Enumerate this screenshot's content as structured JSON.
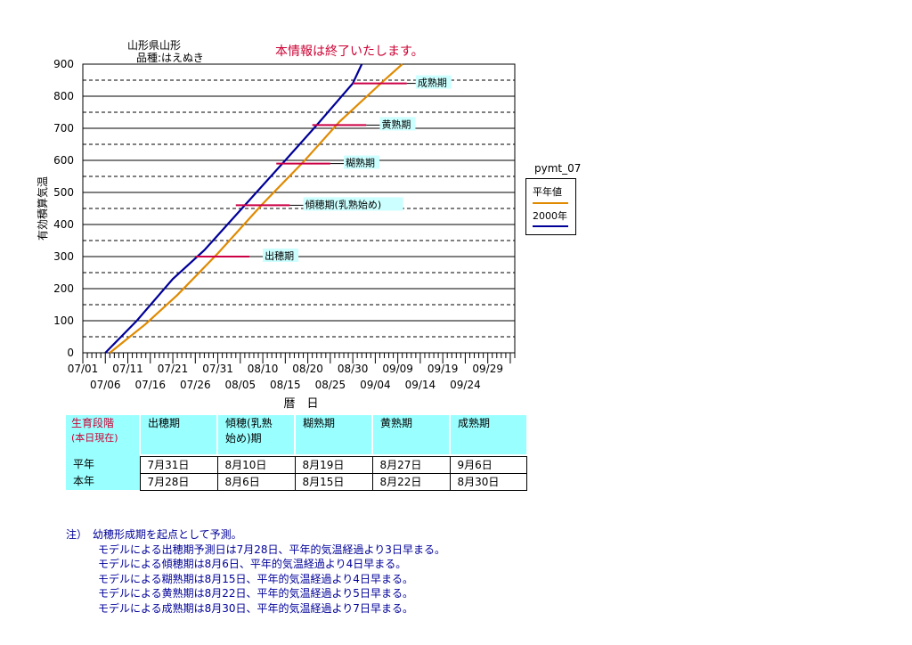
{
  "header": {
    "location": "山形県山形",
    "variety": "品種:はえぬき",
    "notice": "本情報は終了いたします。"
  },
  "chart_data": {
    "type": "line",
    "ylabel": "有効積算気温",
    "xlabel": "暦　日",
    "ylim": [
      0,
      900
    ],
    "yticks": [
      0,
      100,
      200,
      300,
      400,
      500,
      600,
      700,
      800,
      900
    ],
    "x_start": "07/01",
    "x_end": "10/04",
    "xticks_row1": [
      "07/01",
      "07/11",
      "07/21",
      "07/31",
      "08/10",
      "08/20",
      "08/30",
      "09/09",
      "09/19",
      "09/29"
    ],
    "xticks_row2": [
      "07/06",
      "07/16",
      "07/26",
      "08/05",
      "08/15",
      "08/25",
      "09/04",
      "09/14",
      "09/24"
    ],
    "grid": true,
    "legend_title": "pymt_07",
    "legend_position": "right",
    "series": [
      {
        "name": "平年値",
        "color": "#e08a00",
        "points": [
          [
            "07/07",
            0
          ],
          [
            "07/15",
            90
          ],
          [
            "07/22",
            180
          ],
          [
            "07/31",
            310
          ],
          [
            "08/10",
            465
          ],
          [
            "08/19",
            595
          ],
          [
            "08/27",
            720
          ],
          [
            "09/06",
            850
          ],
          [
            "09/10",
            900
          ]
        ]
      },
      {
        "name": "2000年",
        "color": "#000099",
        "points": [
          [
            "07/06",
            0
          ],
          [
            "07/13",
            100
          ],
          [
            "07/21",
            230
          ],
          [
            "07/28",
            320
          ],
          [
            "08/06",
            460
          ],
          [
            "08/15",
            600
          ],
          [
            "08/22",
            710
          ],
          [
            "08/30",
            840
          ],
          [
            "09/01",
            900
          ]
        ]
      }
    ],
    "stages": [
      {
        "label": "出穂期",
        "y": 300,
        "x_start": "07/26",
        "x_end": "08/07",
        "label_x": "08/10"
      },
      {
        "label": "傾穂期(乳熟始め)",
        "y": 460,
        "x_start": "08/04",
        "x_end": "08/16",
        "label_x": "08/19"
      },
      {
        "label": "糊熟期",
        "y": 590,
        "x_start": "08/13",
        "x_end": "08/25",
        "label_x": "08/28"
      },
      {
        "label": "黄熟期",
        "y": 710,
        "x_start": "08/21",
        "x_end": "09/02",
        "label_x": "09/05"
      },
      {
        "label": "成熟期",
        "y": 840,
        "x_start": "08/30",
        "x_end": "09/11",
        "label_x": "09/13"
      }
    ],
    "stage_color": "#cc0044",
    "label_bg": "#ccffff"
  },
  "table": {
    "header_title_line1": "生育段階",
    "header_title_line2": "(本日現在)",
    "stages": [
      "出穂期",
      "傾穂(乳熟\n始め)期",
      "糊熟期",
      "黄熟期",
      "成熟期"
    ],
    "rows": [
      {
        "label": "平年",
        "values": [
          "7月31日",
          "8月10日",
          "8月19日",
          "8月27日",
          "9月6日"
        ]
      },
      {
        "label": "本年",
        "values": [
          "7月28日",
          "8月6日",
          "8月15日",
          "8月22日",
          "8月30日"
        ]
      }
    ]
  },
  "notes": [
    "注）　幼穂形成期を起点として予測。",
    "　　　モデルによる出穂期予測日は7月28日、平年的気温経過より3日早まる。",
    "　　　モデルによる傾穂期は8月6日、平年的気温経過より4日早まる。",
    "　　　モデルによる糊熟期は8月15日、平年的気温経過より4日早まる。",
    "　　　モデルによる黄熟期は8月22日、平年的気温経過より5日早まる。",
    "　　　モデルによる成熟期は8月30日、平年的気温経過より7日早まる。"
  ]
}
